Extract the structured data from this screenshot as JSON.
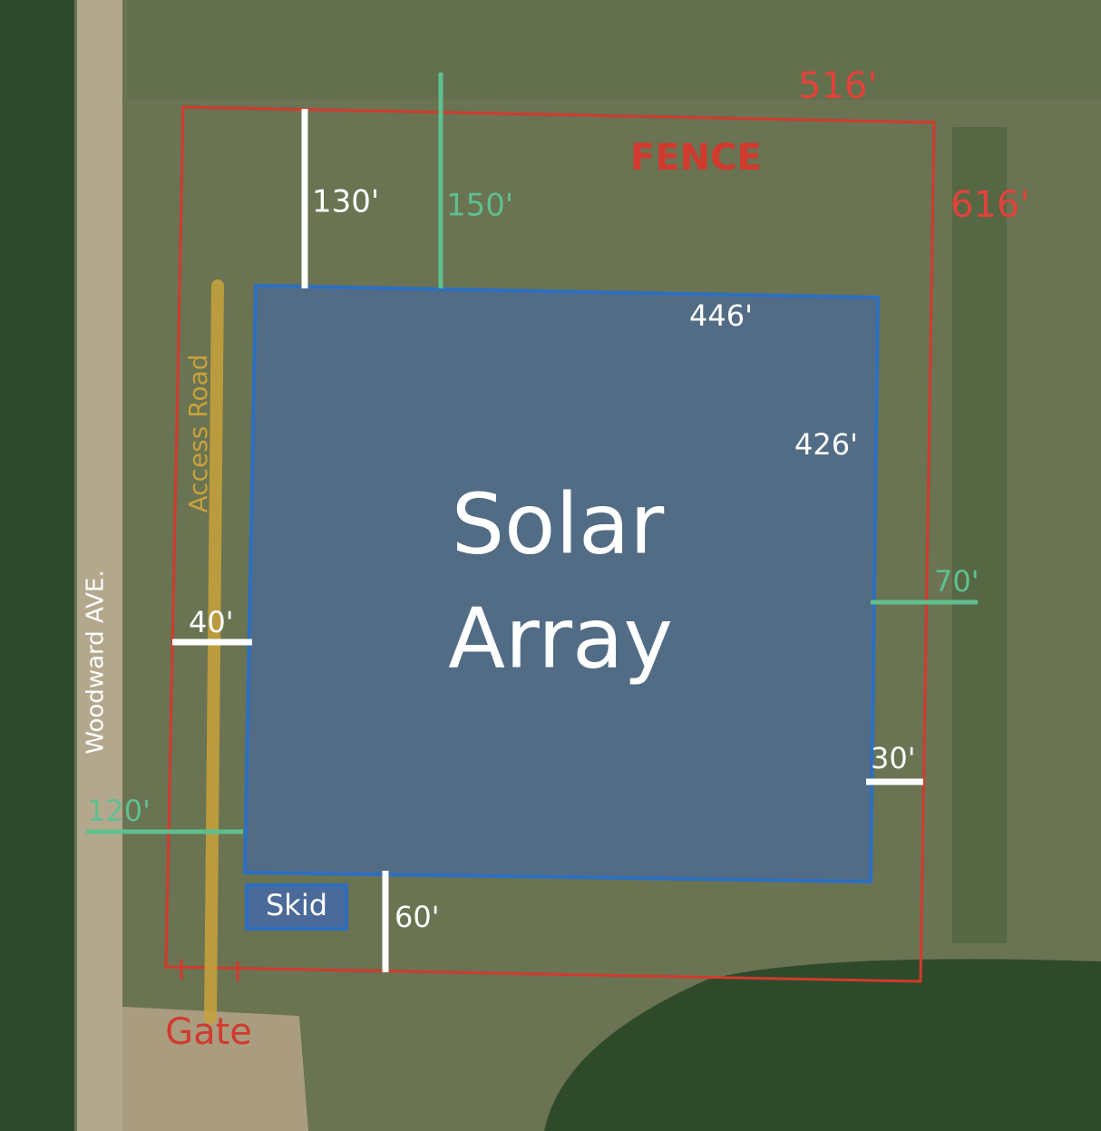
{
  "map": {
    "fence": {
      "label": "FENCE",
      "width": "516'",
      "length": "616'"
    },
    "array": {
      "title_line1": "Solar",
      "title_line2": "Array",
      "width": "446'",
      "length": "426'"
    },
    "setbacks": {
      "north_fence": "130'",
      "north_property": "150'",
      "west_fence": "40'",
      "west_road": "120'",
      "east_property": "70'",
      "east_fence": "30'",
      "south_fence": "60'"
    },
    "access_road": "Access Road",
    "street": "Woodward AVE.",
    "skid": "Skid",
    "gate": "Gate"
  }
}
